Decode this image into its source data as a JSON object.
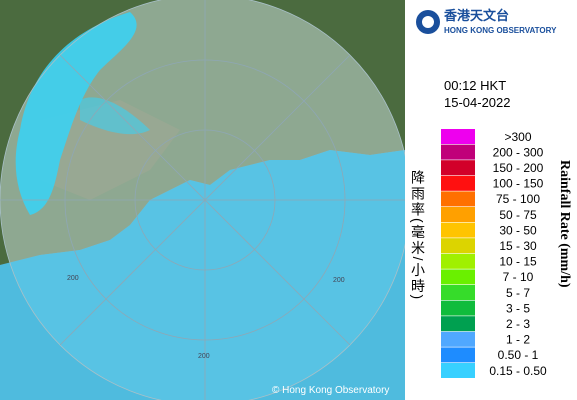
{
  "header": {
    "logo_chinese": "香港天文台",
    "logo_english": "HONG KONG OBSERVATORY"
  },
  "time": "00:12 HKT",
  "date": "15-04-2022",
  "legend": {
    "title_chinese": "降雨率(毫米/小時)",
    "title_english": "Rainfall Rate (mm/h)",
    "items": [
      {
        "label": ">300",
        "color": "#ee00ee"
      },
      {
        "label": "200 - 300",
        "color": "#c0007a"
      },
      {
        "label": "150 - 200",
        "color": "#d2002a"
      },
      {
        "label": "100 - 150",
        "color": "#ff1010"
      },
      {
        "label": "75 - 100",
        "color": "#ff7000"
      },
      {
        "label": "50 - 75",
        "color": "#ffa000"
      },
      {
        "label": "30 - 50",
        "color": "#ffc400"
      },
      {
        "label": "15 - 30",
        "color": "#dcd400"
      },
      {
        "label": "10 - 15",
        "color": "#a0f000"
      },
      {
        "label": "7 - 10",
        "color": "#6af000"
      },
      {
        "label": "5 - 7",
        "color": "#36dc2a"
      },
      {
        "label": "3 - 5",
        "color": "#10bc3c"
      },
      {
        "label": "2 - 3",
        "color": "#00a050"
      },
      {
        "label": "1 - 2",
        "color": "#50a8ff"
      },
      {
        "label": "0.50 - 1",
        "color": "#1e8cff"
      },
      {
        "label": "0.15 - 0.50",
        "color": "#38d0ff"
      }
    ]
  },
  "map": {
    "ring_labels": [
      "200",
      "200",
      "200"
    ],
    "copyright": "© Hong Kong Observatory"
  }
}
